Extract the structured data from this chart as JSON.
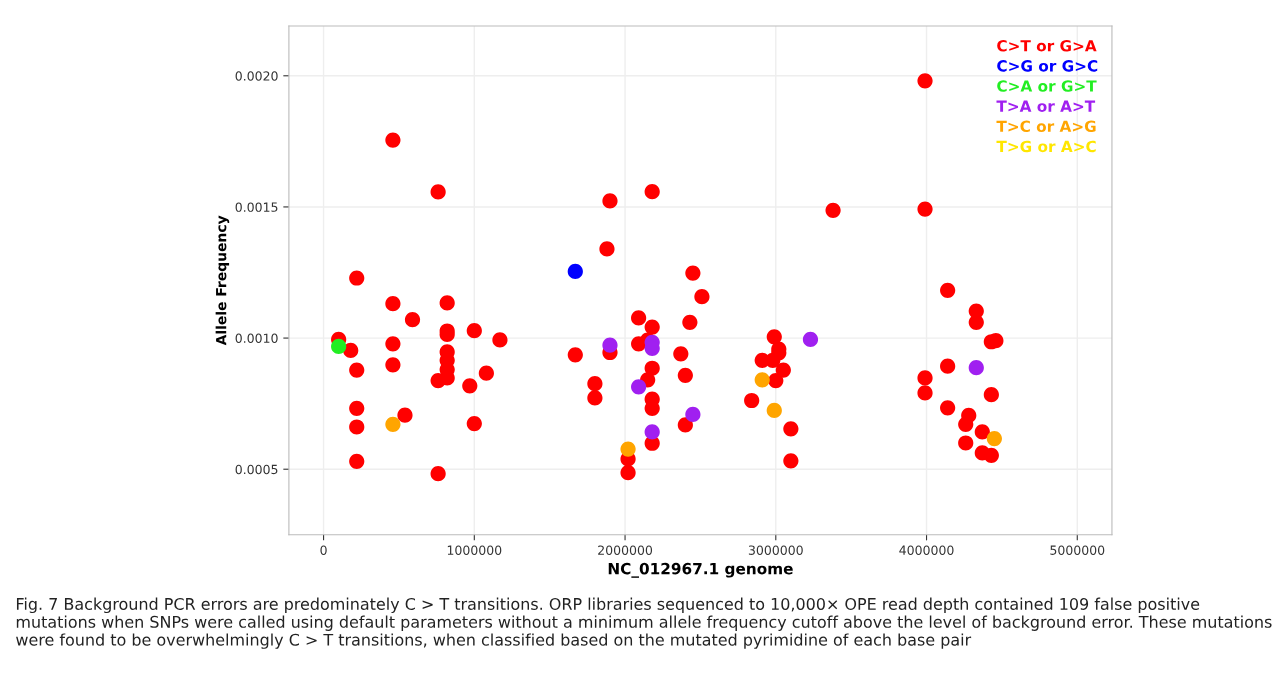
{
  "chart_data": {
    "type": "scatter",
    "xlabel": "NC_012967.1 genome",
    "ylabel": "Allele Frequency",
    "xlim": [
      -230000,
      5230000
    ],
    "xticks": [
      0,
      1000000,
      2000000,
      3000000,
      4000000,
      5000000
    ],
    "ylim": [
      0.00025,
      0.00219
    ],
    "yticks": [
      {
        "value": 0.0005,
        "label": "0.0005"
      },
      {
        "value": 0.001,
        "label": "0.0010"
      },
      {
        "value": 0.0015,
        "label": "0.0015"
      },
      {
        "value": 0.002,
        "label": "0.0020"
      }
    ],
    "grid": true,
    "legend": "top right",
    "marker": "circle",
    "series": [
      {
        "name": "C>T or G>A",
        "color": "#ff0000",
        "x": [
          100000,
          180000,
          220000,
          220000,
          220000,
          220000,
          220000,
          460000,
          460000,
          460000,
          540000,
          590000,
          820000,
          820000,
          820000,
          820000,
          820000,
          820000,
          820000,
          760000,
          760000,
          970000,
          1000000,
          1000000,
          1080000,
          1170000,
          460000,
          760000,
          1670000,
          1800000,
          1800000,
          1900000,
          2090000,
          2090000,
          2150000,
          2180000,
          2180000,
          2150000,
          2180000,
          2180000,
          2180000,
          2020000,
          2020000,
          2370000,
          2400000,
          2430000,
          2400000,
          2450000,
          2510000,
          1900000,
          2180000,
          1880000,
          3990000,
          3380000,
          3990000,
          2990000,
          3020000,
          3020000,
          2910000,
          2980000,
          3050000,
          3000000,
          2840000,
          3100000,
          3100000,
          4140000,
          4330000,
          4330000,
          4430000,
          4460000,
          4140000,
          3990000,
          3990000,
          4430000,
          4140000,
          4280000,
          4260000,
          4370000,
          4260000,
          4370000,
          4430000
        ],
        "values": [
          0.000995,
          0.000953,
          0.000878,
          0.000732,
          0.000661,
          0.00053,
          0.001229,
          0.001131,
          0.000978,
          0.000898,
          0.000706,
          0.00107,
          0.001134,
          0.001027,
          0.001014,
          0.000947,
          0.000915,
          0.00088,
          0.000848,
          0.000838,
          0.000483,
          0.000818,
          0.001028,
          0.000674,
          0.000866,
          0.000993,
          0.001755,
          0.001557,
          0.000936,
          0.000826,
          0.000772,
          0.000945,
          0.001077,
          0.000978,
          0.000992,
          0.001042,
          0.000885,
          0.000841,
          0.000767,
          0.000732,
          0.000599,
          0.000539,
          0.000487,
          0.00094,
          0.000858,
          0.00106,
          0.000669,
          0.001248,
          0.001158,
          0.001523,
          0.001558,
          0.00134,
          0.001981,
          0.001487,
          0.001492,
          0.001005,
          0.000958,
          0.000944,
          0.000915,
          0.000915,
          0.000878,
          0.000838,
          0.000762,
          0.000654,
          0.000532,
          0.001182,
          0.001103,
          0.00106,
          0.000986,
          0.00099,
          0.000893,
          0.000848,
          0.000791,
          0.000784,
          0.000734,
          0.000705,
          0.000671,
          0.000642,
          0.0006,
          0.000562,
          0.000553
        ]
      },
      {
        "name": "C>G or G>C",
        "color": "#0000ff",
        "x": [
          1670000
        ],
        "values": [
          0.001254
        ]
      },
      {
        "name": "C>A or G>T",
        "color": "#22ee22",
        "x": [
          100000
        ],
        "values": [
          0.000968
        ]
      },
      {
        "name": "T>A or A>T",
        "color": "#a020f0",
        "x": [
          1900000,
          2180000,
          2180000,
          2090000,
          2180000,
          2450000,
          3230000,
          4330000
        ],
        "values": [
          0.000973,
          0.000984,
          0.000961,
          0.000814,
          0.000642,
          0.000709,
          0.000995,
          0.000887
        ]
      },
      {
        "name": "T>C or A>G",
        "color": "#ffa500",
        "x": [
          460000,
          2020000,
          2910000,
          2990000,
          4450000
        ],
        "values": [
          0.000671,
          0.000577,
          0.000841,
          0.000724,
          0.000617
        ]
      },
      {
        "name": "T>G or A>C",
        "color": "#ffe600"
      }
    ],
    "annotations": [
      "Fig. 7 Background PCR errors are predominately C > T transitions. ORP libraries sequenced to 10,000× OPE read depth contained 109 false positive mutations when SNPs were called using default parameters without a minimum allele frequency cutoff above the level of background error. These mutations were found to be overwhelmingly C > T transitions, when classified based on the mutated pyrimidine of each base pair"
    ]
  }
}
